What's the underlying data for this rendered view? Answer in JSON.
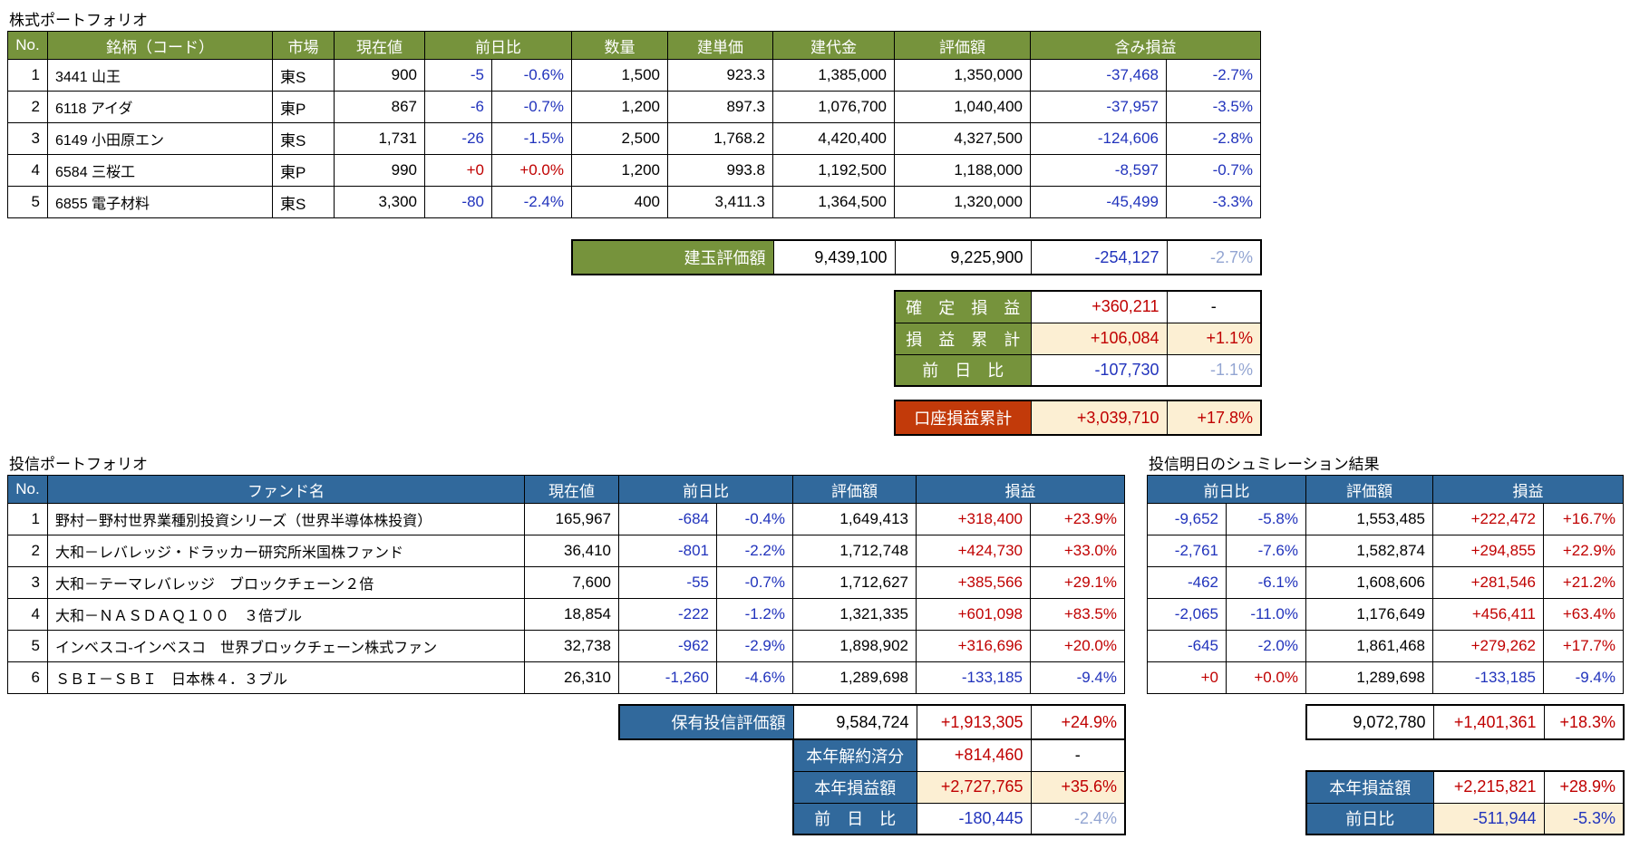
{
  "colors": {
    "header_green": "#76933C",
    "header_blue": "#31699C",
    "positive_red": "#C00000",
    "negative_blue": "#2133BC",
    "muted_blue": "#93A5D2",
    "highlight_cream": "#FCEFD3",
    "account_label_red": "#C23A0A"
  },
  "stock": {
    "title": "株式ポートフォリオ",
    "headers": {
      "no": "No.",
      "name": "銘柄（コード）",
      "market": "市場",
      "price": "現在値",
      "change": "前日比",
      "qty": "数量",
      "unit_price": "建単価",
      "amount": "建代金",
      "value": "評価額",
      "pl": "含み損益"
    },
    "rows": [
      {
        "no": "1",
        "name": "3441 山王",
        "market": "東S",
        "price": "900",
        "chg": "-5",
        "chg_pct": "-0.6%",
        "qty": "1,500",
        "unit": "923.3",
        "amount": "1,385,000",
        "value": "1,350,000",
        "pl": "-37,468",
        "pl_pct": "-2.7%"
      },
      {
        "no": "2",
        "name": "6118 アイダ",
        "market": "東P",
        "price": "867",
        "chg": "-6",
        "chg_pct": "-0.7%",
        "qty": "1,200",
        "unit": "897.3",
        "amount": "1,076,700",
        "value": "1,040,400",
        "pl": "-37,957",
        "pl_pct": "-3.5%"
      },
      {
        "no": "3",
        "name": "6149 小田原エン",
        "market": "東S",
        "price": "1,731",
        "chg": "-26",
        "chg_pct": "-1.5%",
        "qty": "2,500",
        "unit": "1,768.2",
        "amount": "4,420,400",
        "value": "4,327,500",
        "pl": "-124,606",
        "pl_pct": "-2.8%"
      },
      {
        "no": "4",
        "name": "6584 三桜工",
        "market": "東P",
        "price": "990",
        "chg": "+0",
        "chg_pct": "+0.0%",
        "qty": "1,200",
        "unit": "993.8",
        "amount": "1,192,500",
        "value": "1,188,000",
        "pl": "-8,597",
        "pl_pct": "-0.7%"
      },
      {
        "no": "5",
        "name": "6855 電子材料",
        "market": "東S",
        "price": "3,300",
        "chg": "-80",
        "chg_pct": "-2.4%",
        "qty": "400",
        "unit": "3,411.3",
        "amount": "1,364,500",
        "value": "1,320,000",
        "pl": "-45,499",
        "pl_pct": "-3.3%"
      }
    ],
    "summary": {
      "label": "建玉評価額",
      "amount": "9,439,100",
      "value": "9,225,900",
      "pl": "-254,127",
      "pl_pct": "-2.7%"
    },
    "sub_rows": [
      {
        "label": "確　定　損　益",
        "value": "+360,211",
        "pct": "-"
      },
      {
        "label": "損　益　累　計",
        "value": "+106,084",
        "pct": "+1.1%"
      },
      {
        "label": "前　日　比",
        "value": "-107,730",
        "pct": "-1.1%"
      }
    ],
    "account": {
      "label": "口座損益累計",
      "value": "+3,039,710",
      "pct": "+17.8%"
    }
  },
  "fund": {
    "title": "投信ポートフォリオ",
    "headers": {
      "no": "No.",
      "name": "ファンド名",
      "price": "現在値",
      "change": "前日比",
      "value": "評価額",
      "pl": "損益"
    },
    "rows": [
      {
        "no": "1",
        "name": "野村－野村世界業種別投資シリーズ（世界半導体株投資）",
        "price": "165,967",
        "chg": "-684",
        "chg_pct": "-0.4%",
        "value": "1,649,413",
        "pl": "+318,400",
        "pl_pct": "+23.9%"
      },
      {
        "no": "2",
        "name": "大和－レバレッジ・ドラッカー研究所米国株ファンド",
        "price": "36,410",
        "chg": "-801",
        "chg_pct": "-2.2%",
        "value": "1,712,748",
        "pl": "+424,730",
        "pl_pct": "+33.0%"
      },
      {
        "no": "3",
        "name": "大和－テーマレバレッジ　ブロックチェーン２倍",
        "price": "7,600",
        "chg": "-55",
        "chg_pct": "-0.7%",
        "value": "1,712,627",
        "pl": "+385,566",
        "pl_pct": "+29.1%"
      },
      {
        "no": "4",
        "name": "大和－ＮＡＳＤＡＱ１００　３倍ブル",
        "price": "18,854",
        "chg": "-222",
        "chg_pct": "-1.2%",
        "value": "1,321,335",
        "pl": "+601,098",
        "pl_pct": "+83.5%"
      },
      {
        "no": "5",
        "name": "インベスコ-インベスコ　世界ブロックチェーン株式ファン",
        "price": "32,738",
        "chg": "-962",
        "chg_pct": "-2.9%",
        "value": "1,898,902",
        "pl": "+316,696",
        "pl_pct": "+20.0%"
      },
      {
        "no": "6",
        "name": "ＳＢＩ－ＳＢＩ　日本株４．３ブル",
        "price": "26,310",
        "chg": "-1,260",
        "chg_pct": "-4.6%",
        "value": "1,289,698",
        "pl": "-133,185",
        "pl_pct": "-9.4%"
      }
    ],
    "summary": {
      "label": "保有投信評価額",
      "value": "9,584,724",
      "pl": "+1,913,305",
      "pl_pct": "+24.9%"
    },
    "bottom_rows": [
      {
        "label": "本年解約済分",
        "value": "+814,460",
        "pct": "-"
      },
      {
        "label": "本年損益額",
        "value": "+2,727,765",
        "pct": "+35.6%"
      },
      {
        "label": "前　日　比",
        "value": "-180,445",
        "pct": "-2.4%"
      }
    ]
  },
  "sim": {
    "title": "投信明日のシュミレーション結果",
    "headers": {
      "change": "前日比",
      "value": "評価額",
      "pl": "損益"
    },
    "rows": [
      {
        "chg": "-9,652",
        "chg_pct": "-5.8%",
        "value": "1,553,485",
        "pl": "+222,472",
        "pl_pct": "+16.7%"
      },
      {
        "chg": "-2,761",
        "chg_pct": "-7.6%",
        "value": "1,582,874",
        "pl": "+294,855",
        "pl_pct": "+22.9%"
      },
      {
        "chg": "-462",
        "chg_pct": "-6.1%",
        "value": "1,608,606",
        "pl": "+281,546",
        "pl_pct": "+21.2%"
      },
      {
        "chg": "-2,065",
        "chg_pct": "-11.0%",
        "value": "1,176,649",
        "pl": "+456,411",
        "pl_pct": "+63.4%"
      },
      {
        "chg": "-645",
        "chg_pct": "-2.0%",
        "value": "1,861,468",
        "pl": "+279,262",
        "pl_pct": "+17.7%"
      },
      {
        "chg": "+0",
        "chg_pct": "+0.0%",
        "value": "1,289,698",
        "pl": "-133,185",
        "pl_pct": "-9.4%"
      }
    ],
    "summary": {
      "value": "9,072,780",
      "pl": "+1,401,361",
      "pl_pct": "+18.3%"
    },
    "bottom_rows": [
      {
        "label": "本年損益額",
        "value": "+2,215,821",
        "pct": "+28.9%"
      },
      {
        "label": "前日比",
        "value": "-511,944",
        "pct": "-5.3%"
      }
    ]
  }
}
